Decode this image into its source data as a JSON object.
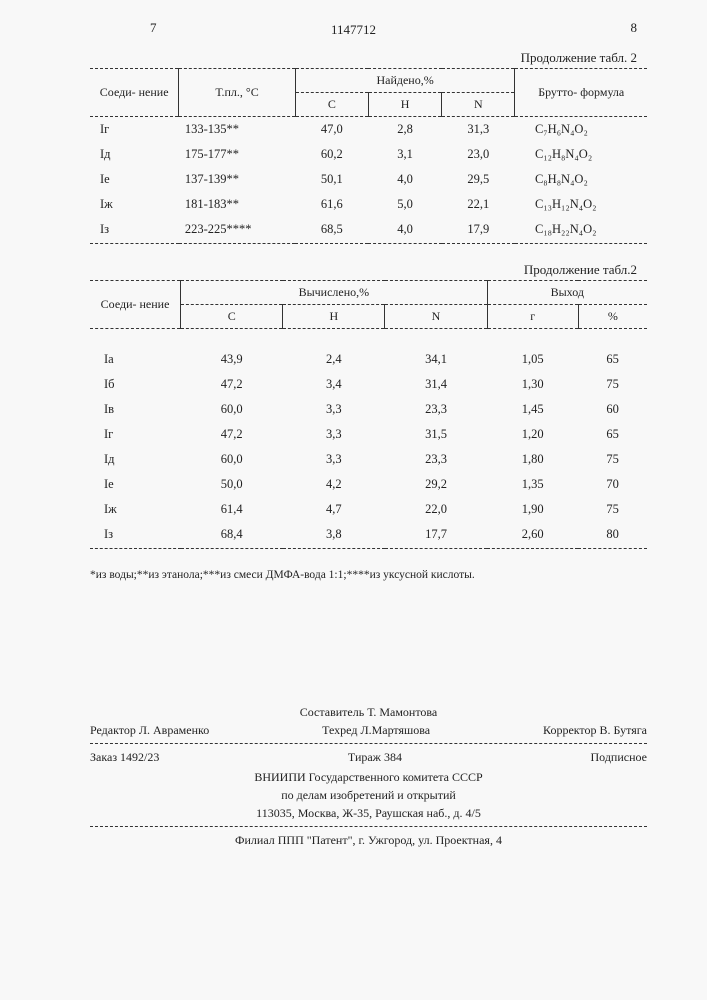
{
  "header": {
    "page_left": "7",
    "doc_number": "1147712",
    "page_right": "8"
  },
  "table1": {
    "continuation": "Продолжение табл. 2",
    "columns": {
      "compound": "Соеди-\nнение",
      "mp": "Т.пл., °С",
      "found": "Найдено,%",
      "C": "С",
      "H": "Н",
      "N": "N",
      "formula": "Брутто-\nформула"
    },
    "rows": [
      {
        "id": "Iг",
        "mp": "133-135**",
        "C": "47,0",
        "H": "2,8",
        "N": "31,3",
        "formula": "C₇H₆N₄O₂"
      },
      {
        "id": "Iд",
        "mp": "175-177**",
        "C": "60,2",
        "H": "3,1",
        "N": "23,0",
        "formula": "C₁₂H₈N₄O₂"
      },
      {
        "id": "Iе",
        "mp": "137-139**",
        "C": "50,1",
        "H": "4,0",
        "N": "29,5",
        "formula": "C₈H₈N₄O₂"
      },
      {
        "id": "Iж",
        "mp": "181-183**",
        "C": "61,6",
        "H": "5,0",
        "N": "22,1",
        "formula": "C₁₃H₁₂N₄O₂"
      },
      {
        "id": "Iз",
        "mp": "223-225****",
        "C": "68,5",
        "H": "4,0",
        "N": "17,9",
        "formula": "C₁₈H₂₂N₄O₂"
      }
    ]
  },
  "table2": {
    "continuation": "Продолжение табл.2",
    "columns": {
      "compound": "Соеди-\nнение",
      "calc": "Вычислено,%",
      "C": "С",
      "H": "Н",
      "N": "N",
      "yield": "Выход",
      "g": "г",
      "pct": "%"
    },
    "rows": [
      {
        "id": "Iа",
        "C": "43,9",
        "H": "2,4",
        "N": "34,1",
        "g": "1,05",
        "pct": "65"
      },
      {
        "id": "Iб",
        "C": "47,2",
        "H": "3,4",
        "N": "31,4",
        "g": "1,30",
        "pct": "75"
      },
      {
        "id": "Iв",
        "C": "60,0",
        "H": "3,3",
        "N": "23,3",
        "g": "1,45",
        "pct": "60"
      },
      {
        "id": "Iг",
        "C": "47,2",
        "H": "3,3",
        "N": "31,5",
        "g": "1,20",
        "pct": "65"
      },
      {
        "id": "Iд",
        "C": "60,0",
        "H": "3,3",
        "N": "23,3",
        "g": "1,80",
        "pct": "75"
      },
      {
        "id": "Iе",
        "C": "50,0",
        "H": "4,2",
        "N": "29,2",
        "g": "1,35",
        "pct": "70"
      },
      {
        "id": "Iж",
        "C": "61,4",
        "H": "4,7",
        "N": "22,0",
        "g": "1,90",
        "pct": "75"
      },
      {
        "id": "Iз",
        "C": "68,4",
        "H": "3,8",
        "N": "17,7",
        "g": "2,60",
        "pct": "80"
      }
    ]
  },
  "footnote": "*из воды;**из этанола;***из смеси ДМФА-вода 1:1;****из уксусной кислоты.",
  "footer": {
    "compiler": "Составитель Т. Мамонтова",
    "editor": "Редактор Л. Авраменко",
    "tech_editor": "Техред Л.Мартяшова",
    "corrector": "Корректор В. Бутяга",
    "order": "Заказ 1492/23",
    "circulation": "Тираж 384",
    "subscription": "Подписное",
    "vniipi1": "ВНИИПИ Государственного комитета СССР",
    "vniipi2": "по делам изобретений и открытий",
    "vniipi3": "113035, Москва, Ж-35, Раушская наб., д. 4/5",
    "branch": "Филиал ППП \"Патент\", г. Ужгород, ул. Проектная, 4"
  }
}
